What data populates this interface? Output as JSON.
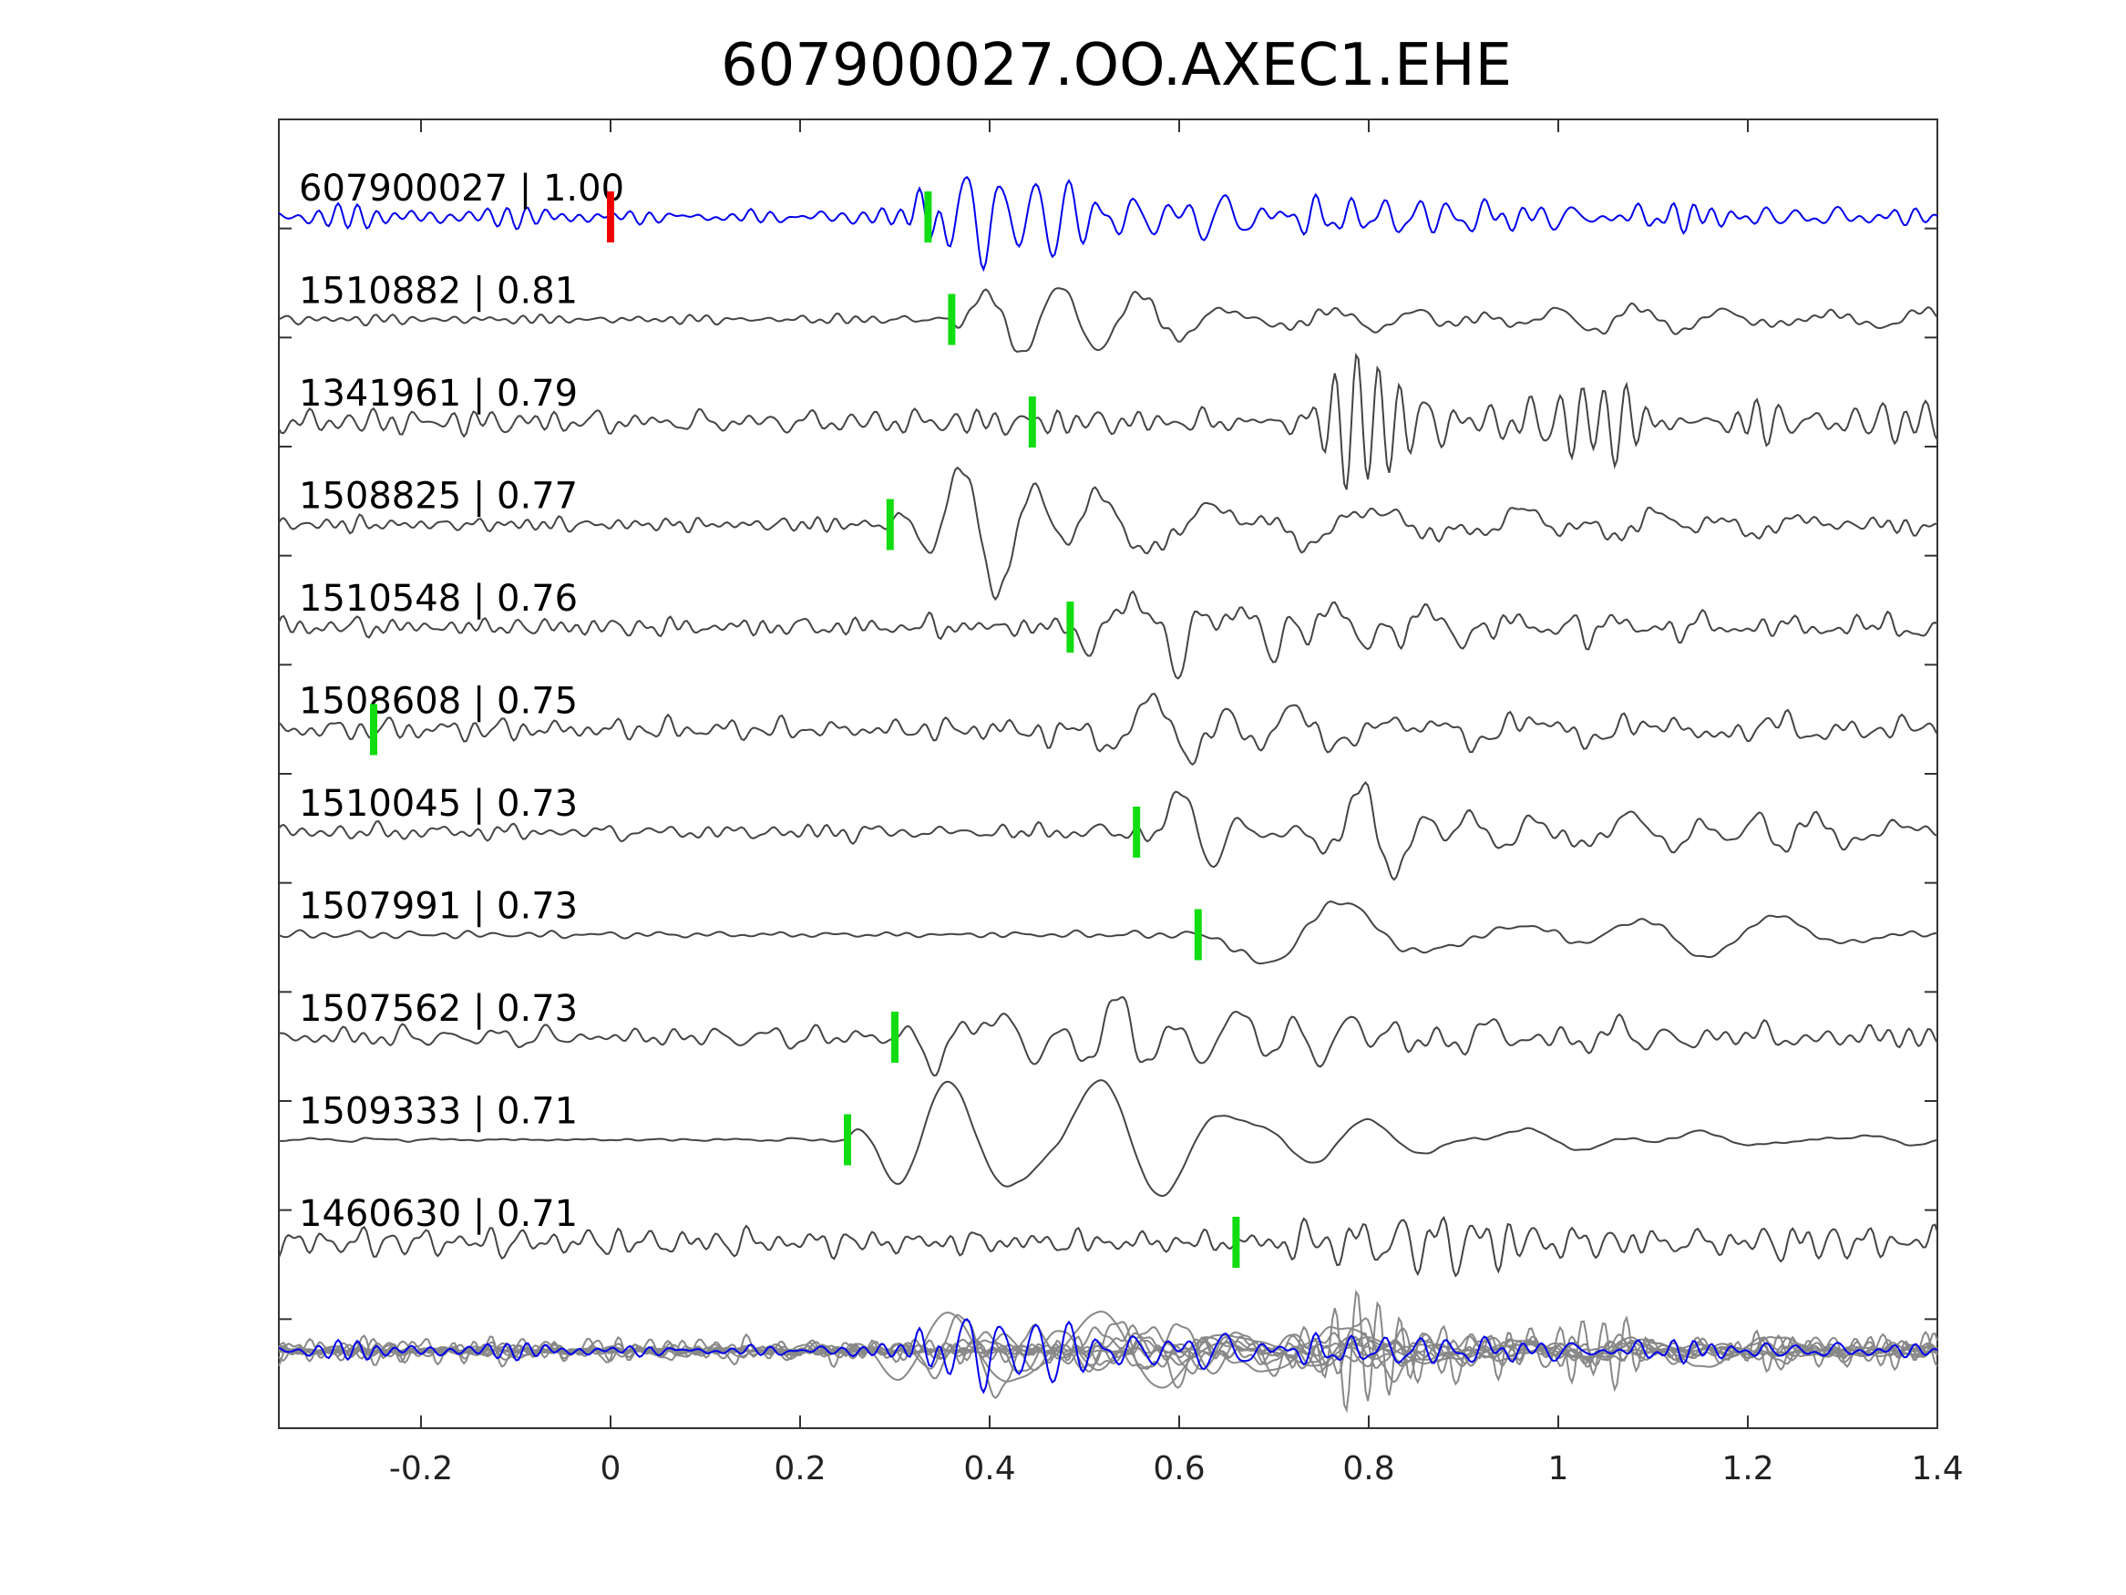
{
  "chart_data": {
    "type": "line",
    "title": "607900027.OO.AXEC1.EHE",
    "xlabel": "",
    "ylabel": "",
    "xlim": [
      -0.35,
      1.4
    ],
    "xticks": [
      -0.2,
      0,
      0.2,
      0.4,
      0.6,
      0.8,
      1,
      1.2,
      1.4
    ],
    "xtick_labels": [
      "-0.2",
      "0",
      "0.2",
      "0.4",
      "0.6",
      "0.8",
      "1",
      "1.2",
      "1.4"
    ],
    "grid": false,
    "legend": "none",
    "colors": {
      "reference": "#0000ee",
      "trace": "#444444",
      "stack": "#888888",
      "reference_pick": "#ee0000",
      "pick": "#11dd11",
      "axis": "#333333"
    },
    "series": [
      {
        "label": "607900027 | 1.00",
        "pick": 0.335,
        "seed": 11,
        "amp": 1.0,
        "freq": 24,
        "noise": 0.25,
        "onset": 0.3,
        "style": "reference",
        "red_pick": 0.0
      },
      {
        "label": "1510882 | 0.81",
        "pick": 0.36,
        "seed": 23,
        "amp": 1.25,
        "freq": 8,
        "noise": 0.12,
        "onset": 0.36,
        "style": "trace"
      },
      {
        "label": "1341961 | 0.79",
        "pick": 0.445,
        "seed": 37,
        "amp": 0.9,
        "freq": 30,
        "noise": 0.45,
        "onset": 0.7,
        "style": "trace"
      },
      {
        "label": "1508825 | 0.77",
        "pick": 0.295,
        "seed": 41,
        "amp": 1.25,
        "freq": 9,
        "noise": 0.2,
        "onset": 0.3,
        "style": "trace"
      },
      {
        "label": "1510548 | 0.76",
        "pick": 0.485,
        "seed": 53,
        "amp": 1.1,
        "freq": 18,
        "noise": 0.3,
        "onset": 0.49,
        "style": "trace"
      },
      {
        "label": "1508608 | 0.75",
        "pick": -0.25,
        "seed": 67,
        "amp": 1.2,
        "freq": 10,
        "noise": 0.3,
        "onset": 0.45,
        "style": "trace"
      },
      {
        "label": "1510045 | 0.73",
        "pick": 0.555,
        "seed": 79,
        "amp": 1.2,
        "freq": 12,
        "noise": 0.2,
        "onset": 0.56,
        "style": "trace"
      },
      {
        "label": "1507991 | 0.73",
        "pick": 0.62,
        "seed": 83,
        "amp": 1.1,
        "freq": 7,
        "noise": 0.1,
        "onset": 0.62,
        "style": "trace"
      },
      {
        "label": "1507562 | 0.73",
        "pick": 0.3,
        "seed": 97,
        "amp": 1.1,
        "freq": 14,
        "noise": 0.35,
        "onset": 0.3,
        "style": "trace"
      },
      {
        "label": "1509333 | 0.71",
        "pick": 0.25,
        "seed": 101,
        "amp": 1.2,
        "freq": 7,
        "noise": 0.05,
        "onset": 0.25,
        "style": "trace"
      },
      {
        "label": "1460630 | 0.71",
        "pick": 0.66,
        "seed": 113,
        "amp": 0.8,
        "freq": 32,
        "noise": 0.6,
        "onset": 0.7,
        "style": "trace"
      }
    ]
  }
}
